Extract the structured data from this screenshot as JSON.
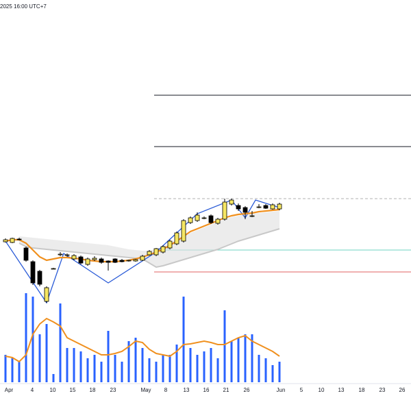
{
  "chart_data": {
    "type": "candlestick",
    "title": "2025 16:00 UTC+7",
    "x": [
      0,
      1,
      2,
      3,
      4,
      5,
      6,
      7,
      8,
      9,
      10,
      11,
      12,
      13,
      14,
      15,
      16,
      17,
      18,
      19,
      20,
      21,
      22,
      23,
      24,
      25,
      26,
      27,
      28,
      29,
      30,
      31,
      32,
      33,
      34,
      35,
      36,
      37,
      38,
      39,
      40
    ],
    "open": [
      107,
      106,
      111,
      98,
      78,
      64,
      20,
      68,
      88,
      87,
      82,
      85,
      74,
      81,
      82,
      79,
      82,
      80,
      79,
      79,
      80,
      88,
      88,
      92,
      98,
      104,
      108,
      135,
      138,
      141,
      145,
      134,
      140,
      162,
      160,
      157,
      145,
      158,
      160,
      155,
      155
    ],
    "high": [
      112,
      113,
      113,
      100,
      80,
      66,
      42,
      69,
      92,
      90,
      89,
      87,
      84,
      86,
      84,
      80,
      83,
      82,
      81,
      82,
      88,
      95,
      98,
      102,
      110,
      122,
      140,
      144,
      150,
      144,
      147,
      142,
      170,
      170,
      163,
      159,
      152,
      162,
      162,
      163,
      164
    ],
    "low": [
      106,
      105,
      109,
      78,
      44,
      42,
      18,
      67,
      86,
      85,
      80,
      74,
      72,
      79,
      75,
      65,
      76,
      77,
      78,
      78,
      79,
      87,
      86,
      90,
      96,
      102,
      106,
      133,
      136,
      140,
      133,
      132,
      138,
      160,
      152,
      140,
      143,
      156,
      155,
      154,
      153
    ],
    "close": [
      110,
      112,
      110,
      80,
      47,
      45,
      40,
      68,
      89,
      88,
      87,
      76,
      82,
      83,
      77,
      77,
      77,
      78,
      80,
      81,
      86,
      93,
      97,
      100,
      108,
      120,
      138,
      142,
      146,
      142,
      135,
      140,
      165,
      168,
      155,
      150,
      145,
      158,
      156,
      161,
      162
    ],
    "up_color": "#f5e663",
    "down_color": "#000000",
    "ma": {
      "color": "#f0901e",
      "values": [
        108,
        110,
        110,
        105,
        95,
        85,
        80,
        82,
        84,
        84,
        83,
        82,
        80,
        79,
        78,
        78,
        78,
        79,
        80,
        82,
        85,
        88,
        92,
        96,
        102,
        108,
        115,
        122,
        126,
        130,
        134,
        138,
        142,
        145,
        147,
        148,
        149,
        151,
        152,
        153,
        154
      ]
    },
    "band": {
      "color": "#e0e0e0",
      "upper": [
        null,
        null,
        115,
        114,
        113,
        112,
        111,
        110,
        109,
        108,
        107,
        106,
        105,
        104,
        103,
        102,
        100,
        98,
        96,
        95,
        94,
        94,
        96,
        100,
        105,
        110,
        115,
        120,
        124,
        128,
        132,
        136,
        140,
        143,
        145,
        147,
        148,
        149,
        150,
        151,
        152
      ],
      "lower": [
        null,
        null,
        105,
        100,
        98,
        97,
        96,
        95,
        94,
        93,
        92,
        91,
        90,
        89,
        88,
        87,
        86,
        85,
        84,
        83,
        82,
        76,
        70,
        72,
        75,
        78,
        81,
        84,
        87,
        90,
        93,
        96,
        100,
        104,
        108,
        111,
        114,
        117,
        120,
        123,
        126
      ]
    },
    "zigzag": {
      "color": "#2a5bd7",
      "x": [
        0,
        6,
        8.5,
        15,
        22,
        28,
        33,
        35,
        36.5,
        40
      ],
      "values": [
        108,
        18,
        90,
        47,
        92,
        148,
        168,
        142,
        168,
        157
      ]
    },
    "levels": [
      {
        "value": 321,
        "color": "#131722",
        "style": "solid",
        "start": 21.7
      },
      {
        "value": 246,
        "color": "#131722",
        "style": "solid",
        "start": 21.7
      },
      {
        "value": 170,
        "color": "#b0b0b0",
        "style": "dashed",
        "start": 21.7
      },
      {
        "value": 95,
        "color": "#6fd3c0",
        "style": "solid",
        "start": 21.7
      },
      {
        "value": 63,
        "color": "#e06060",
        "style": "solid",
        "start": 21.7
      }
    ],
    "ylim": [
      0,
      460
    ],
    "volume": {
      "color": "#2962ff",
      "ylim": [
        0,
        140
      ],
      "values": [
        40,
        35,
        30,
        130,
        125,
        70,
        85,
        12,
        115,
        50,
        50,
        45,
        35,
        40,
        30,
        75,
        40,
        30,
        60,
        65,
        50,
        35,
        30,
        40,
        40,
        55,
        125,
        50,
        40,
        45,
        50,
        35,
        105,
        60,
        65,
        70,
        70,
        40,
        35,
        25,
        30
      ],
      "ma": {
        "color": "#f0901e",
        "values": [
          38,
          36,
          30,
          40,
          70,
          85,
          93,
          88,
          82,
          65,
          60,
          55,
          50,
          45,
          40,
          40,
          42,
          45,
          52,
          60,
          58,
          48,
          42,
          40,
          38,
          45,
          55,
          56,
          58,
          60,
          58,
          55,
          55,
          60,
          65,
          68,
          60,
          55,
          50,
          45,
          38
        ]
      }
    },
    "xlim": [
      -0.8,
      59.2
    ],
    "xticks": [
      {
        "value": 0.5,
        "label": "Apr"
      },
      {
        "value": 3.9,
        "label": "4"
      },
      {
        "value": 6.9,
        "label": "10"
      },
      {
        "value": 9.8,
        "label": "15"
      },
      {
        "value": 12.7,
        "label": "18"
      },
      {
        "value": 15.7,
        "label": "23"
      },
      {
        "value": 20.5,
        "label": "May"
      },
      {
        "value": 23.4,
        "label": "8"
      },
      {
        "value": 26.4,
        "label": "13"
      },
      {
        "value": 29.3,
        "label": "16"
      },
      {
        "value": 32.2,
        "label": "21"
      },
      {
        "value": 35.2,
        "label": "26"
      },
      {
        "value": 40.2,
        "label": "Jun"
      },
      {
        "value": 43.2,
        "label": "5"
      },
      {
        "value": 46.1,
        "label": "10"
      },
      {
        "value": 49,
        "label": "13"
      },
      {
        "value": 52,
        "label": "18"
      },
      {
        "value": 55,
        "label": "23"
      },
      {
        "value": 57.9,
        "label": "26"
      }
    ]
  }
}
